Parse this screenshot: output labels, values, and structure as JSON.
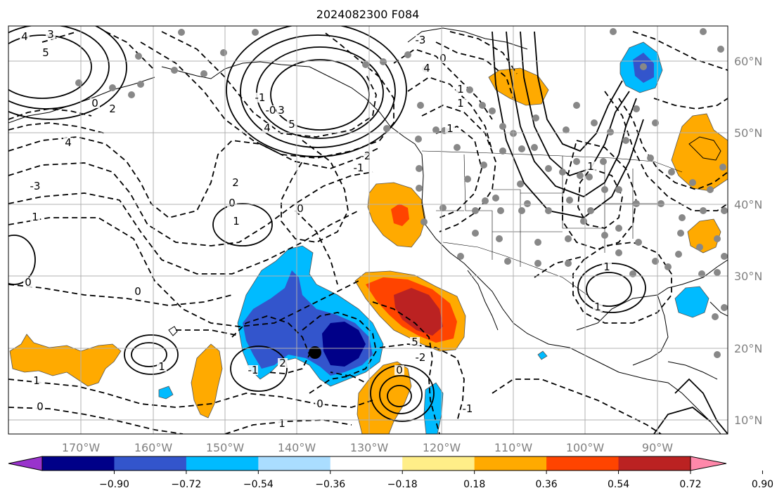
{
  "title": "2024082300 F084",
  "map": {
    "lon_labels": [
      "170°W",
      "160°W",
      "150°W",
      "140°W",
      "130°W",
      "120°W",
      "110°W",
      "100°W",
      "90°W"
    ],
    "lat_labels": [
      "60°N",
      "50°N",
      "40°N",
      "30°N",
      "20°N",
      "10°N"
    ],
    "tc_marker": "tropical-cyclone-position",
    "contour_labels": [
      "3",
      "4",
      "5",
      "0",
      "2",
      "4",
      "-3",
      "1",
      "0",
      "1",
      "0",
      "-1",
      "-0",
      "3",
      "4",
      "5",
      "1",
      "1",
      "-2",
      "-1",
      "2",
      "0",
      "0",
      "1",
      "0",
      "1",
      "0",
      "1",
      "-3",
      "4",
      "5",
      "-2",
      "-1",
      "2",
      "0",
      "1",
      "0",
      "1",
      "1",
      "1",
      "-1"
    ],
    "colors": {
      "positive_contour": "#000000",
      "negative_contour": "#000000",
      "coast": "#000000",
      "grid": "#b0b0b0",
      "dots": "#888888"
    }
  },
  "colorbar": {
    "ticks": [
      "−0.90",
      "−0.72",
      "−0.54",
      "−0.36",
      "−0.18",
      "0.18",
      "0.36",
      "0.54",
      "0.72",
      "0.90"
    ],
    "colors": [
      "#9933cc",
      "#000088",
      "#3355cc",
      "#00bbff",
      "#aaddff",
      "#ffffff",
      "#ffee88",
      "#ffaa00",
      "#ff4400",
      "#bb2222",
      "#ff88aa"
    ]
  }
}
